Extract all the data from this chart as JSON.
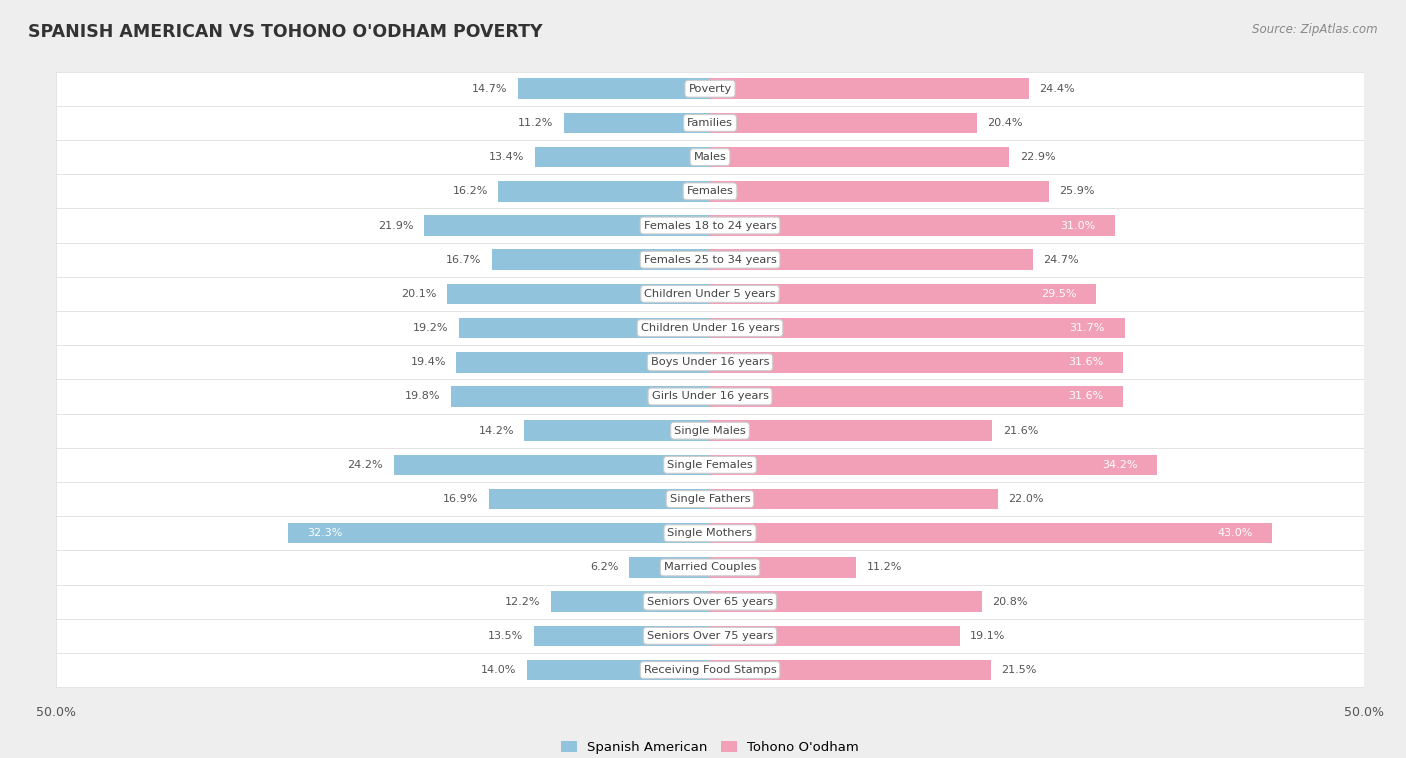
{
  "title": "SPANISH AMERICAN VS TOHONO O'ODHAM POVERTY",
  "source": "Source: ZipAtlas.com",
  "categories": [
    "Poverty",
    "Families",
    "Males",
    "Females",
    "Females 18 to 24 years",
    "Females 25 to 34 years",
    "Children Under 5 years",
    "Children Under 16 years",
    "Boys Under 16 years",
    "Girls Under 16 years",
    "Single Males",
    "Single Females",
    "Single Fathers",
    "Single Mothers",
    "Married Couples",
    "Seniors Over 65 years",
    "Seniors Over 75 years",
    "Receiving Food Stamps"
  ],
  "spanish_american": [
    14.7,
    11.2,
    13.4,
    16.2,
    21.9,
    16.7,
    20.1,
    19.2,
    19.4,
    19.8,
    14.2,
    24.2,
    16.9,
    32.3,
    6.2,
    12.2,
    13.5,
    14.0
  ],
  "tohono_oodham": [
    24.4,
    20.4,
    22.9,
    25.9,
    31.0,
    24.7,
    29.5,
    31.7,
    31.6,
    31.6,
    21.6,
    34.2,
    22.0,
    43.0,
    11.2,
    20.8,
    19.1,
    21.5
  ],
  "left_color": "#91C3DC",
  "right_color": "#F2A0B8",
  "background_color": "#EEEEEE",
  "row_bg_color": "#FFFFFF",
  "row_border_color": "#DDDDDD",
  "axis_max": 50.0,
  "legend_left": "Spanish American",
  "legend_right": "Tohono O'odham",
  "label_color_outside": "#555555",
  "label_color_inside": "#FFFFFF",
  "center_label_bg": "#FFFFFF",
  "center_label_color": "#444444"
}
